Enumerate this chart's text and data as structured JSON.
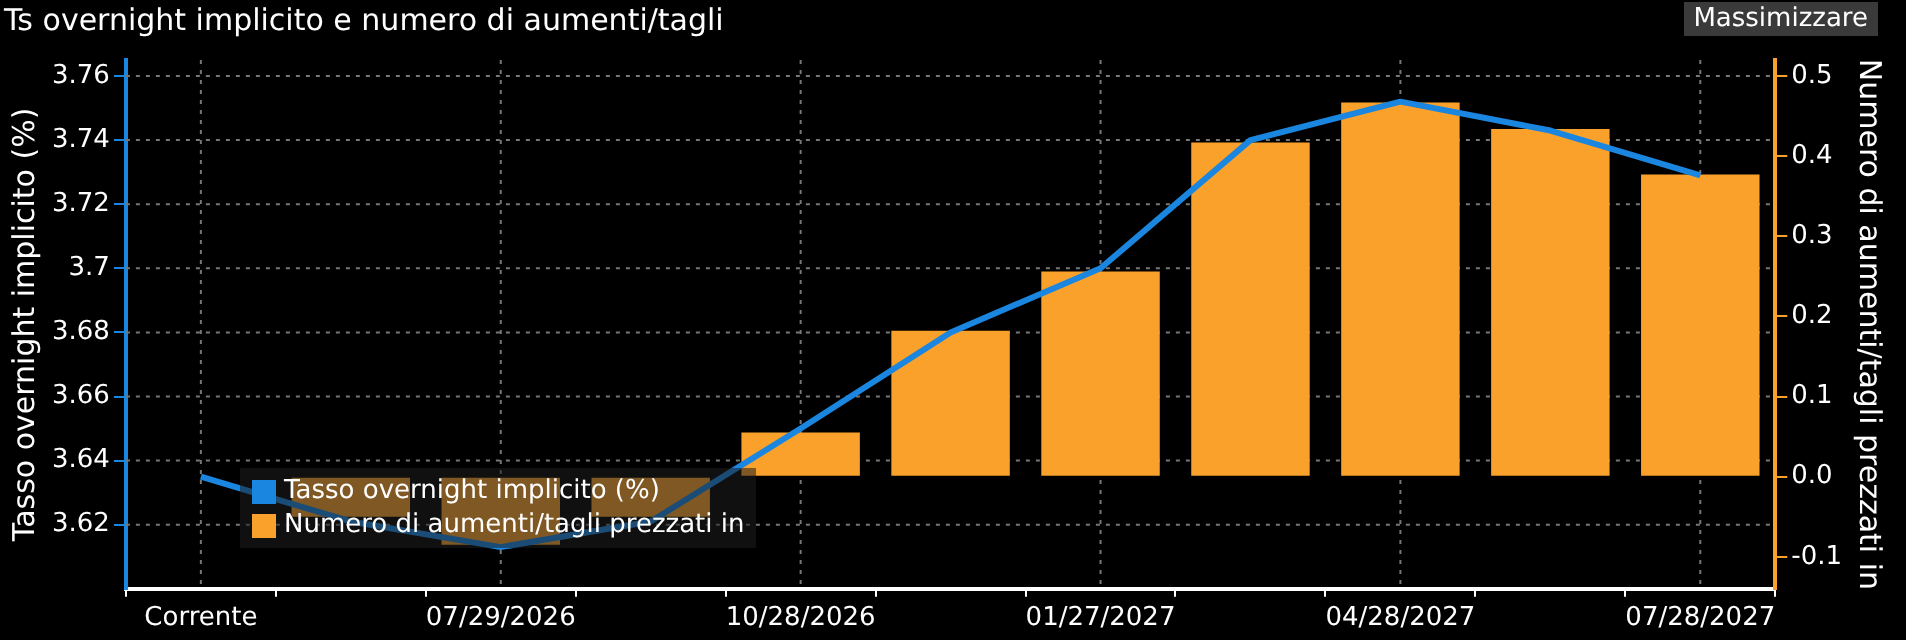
{
  "chart_data": {
    "type": "bar",
    "title": "Ts overnight implicito e numero di aumenti/tagli",
    "ylabel": "Tasso overnight implicito (%)",
    "y2label": "Numero di aumenti/tagli prezzati in",
    "annotations": [
      "Massimizzare"
    ],
    "categories": [
      "Corrente",
      null,
      "07/29/2026",
      null,
      "10/28/2026",
      null,
      "01/27/2027",
      null,
      "04/28/2027",
      null,
      "07/28/2027"
    ],
    "series": [
      {
        "name": "Tasso overnight implicito (%)",
        "type": "line",
        "color": "#1a86e0",
        "values": [
          3.635,
          3.621,
          3.613,
          3.621,
          3.65,
          3.68,
          3.7,
          3.74,
          3.752,
          3.743,
          3.729
        ]
      },
      {
        "name": "Numero di aumenti/tagli prezzati in",
        "axis": "y2",
        "color": "#f9a12b",
        "values": [
          0,
          -0.05,
          -0.085,
          -0.05,
          0.055,
          0.182,
          0.256,
          0.417,
          0.467,
          0.434,
          0.377
        ]
      }
    ],
    "ylim": [
      3.6,
      3.765
    ],
    "yticks": [
      3.62,
      3.64,
      3.66,
      3.68,
      3.7,
      3.72,
      3.74,
      3.76
    ],
    "y2lim": [
      -0.14,
      0.52
    ],
    "y2ticks": [
      -0.1,
      {
        "value": 0,
        "label": "0.0"
      },
      0.1,
      0.2,
      0.3,
      0.4,
      0.5
    ],
    "grid": true,
    "legend": "bottom left",
    "marker": "none",
    "line_style": "solid"
  }
}
